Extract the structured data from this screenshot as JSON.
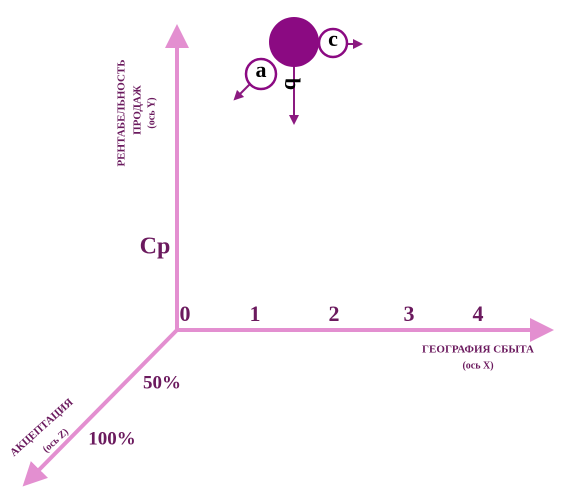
{
  "y_axis": {
    "label_lines": [
      "РЕНТАБЕЛЬНОСТЬ",
      "ПРОДАЖ"
    ],
    "note": "(ось Y)",
    "mark": "Ср"
  },
  "x_axis": {
    "ticks": [
      "0",
      "1",
      "2",
      "3",
      "4"
    ],
    "label": "ГЕОГРАФИЯ СБЫТА",
    "note": "(ось X)"
  },
  "z_axis": {
    "ticks": [
      "50%",
      "100%"
    ],
    "label": "АКЦЕПТАЦИЯ",
    "note": "(ось Z)"
  },
  "nodes": [
    {
      "label": "a"
    },
    {
      "label": "b"
    },
    {
      "label": "c"
    }
  ]
}
